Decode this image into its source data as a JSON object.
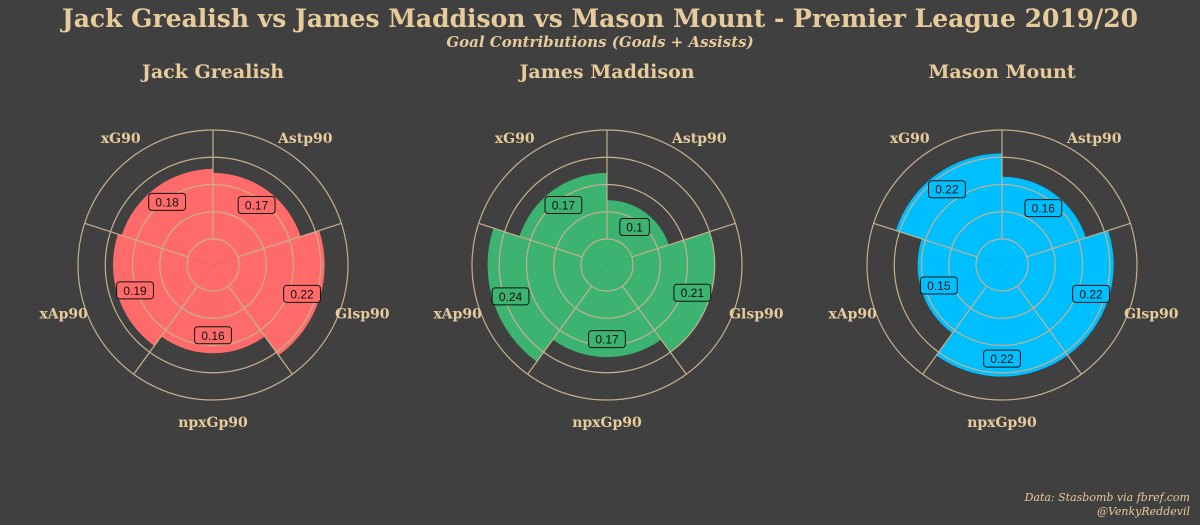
{
  "title": "Jack Grealish vs James Maddison vs Mason Mount - Premier League 2019/20",
  "subtitle": "Goal Contributions (Goals + Assists)",
  "caption": {
    "source": "Data: Stasbomb via fbref.com",
    "author": "@VenkyReddevil"
  },
  "colors": {
    "background": "#404040",
    "text": "#e8cb9b",
    "grid": "#c7b08e"
  },
  "chart_data": [
    {
      "type": "polar-bar",
      "title": "Jack Grealish",
      "categories": [
        "Astp90",
        "Glsp90",
        "npxGp90",
        "xAp90",
        "xG90"
      ],
      "values": [
        0.17,
        0.22,
        0.16,
        0.19,
        0.18
      ],
      "labels": [
        "0.17",
        "0.22",
        "0.16",
        "0.19",
        "0.18"
      ],
      "color": "#ff6b6b",
      "grid_rings": 5
    },
    {
      "type": "polar-bar",
      "title": "James Maddison",
      "categories": [
        "Astp90",
        "Glsp90",
        "npxGp90",
        "xAp90",
        "xG90"
      ],
      "values": [
        0.1,
        0.21,
        0.17,
        0.24,
        0.17
      ],
      "labels": [
        "0.1",
        "0.21",
        "0.17",
        "0.24",
        "0.17"
      ],
      "color": "#3cb371",
      "grid_rings": 5
    },
    {
      "type": "polar-bar",
      "title": "Mason Mount",
      "categories": [
        "Astp90",
        "Glsp90",
        "npxGp90",
        "xAp90",
        "xG90"
      ],
      "values": [
        0.16,
        0.22,
        0.22,
        0.15,
        0.22
      ],
      "labels": [
        "0.16",
        "0.22",
        "0.22",
        "0.15",
        "0.22"
      ],
      "color": "#00bfff",
      "grid_rings": 5
    }
  ]
}
